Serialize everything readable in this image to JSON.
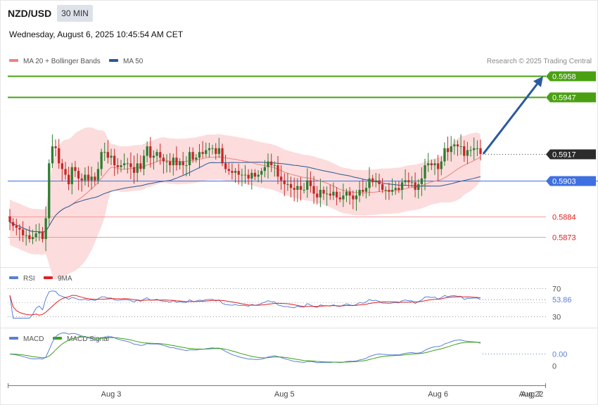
{
  "header": {
    "symbol": "NZD/USD",
    "timeframe": "30 MIN",
    "datetime": "Wednesday, August 6, 2025 10:45:54 AM CET",
    "credit": "Research © 2025 Trading Central"
  },
  "legend": {
    "main": [
      {
        "label": "MA 20 + Bollinger Bands",
        "color": "#f08080"
      },
      {
        "label": "MA 50",
        "color": "#2b5797"
      }
    ],
    "rsi": [
      {
        "label": "RSI",
        "color": "#5b7fd6"
      },
      {
        "label": "9MA",
        "color": "#e02020"
      }
    ],
    "macd": [
      {
        "label": "MACD",
        "color": "#5b7fd6"
      },
      {
        "label": "MACD Signal",
        "color": "#3aa01a"
      }
    ]
  },
  "colors": {
    "resistance": "#4aa012",
    "support": "#f29a9a",
    "support_text": "#e02020",
    "pivot": "#3f6fe0",
    "current": "#2b2b2b",
    "arrow": "#2c5aa0",
    "bollinger_fill": "#fcdcdc",
    "candle_up": "#2e7d32",
    "candle_down": "#c62828"
  },
  "chart_data": [
    {
      "type": "candlestick",
      "ylim": [
        0.5859,
        0.5963
      ],
      "levels": [
        {
          "value": 0.5958,
          "label": "0.5958",
          "kind": "resistance"
        },
        {
          "value": 0.5947,
          "label": "0.5947",
          "kind": "resistance"
        },
        {
          "value": 0.5917,
          "label": "0.5917",
          "kind": "current"
        },
        {
          "value": 0.5903,
          "label": "0.5903",
          "kind": "pivot"
        },
        {
          "value": 0.5884,
          "label": "0.5884",
          "kind": "support"
        },
        {
          "value": 0.5873,
          "label": "0.5873",
          "kind": "support"
        }
      ],
      "series_close": [
        0.5881,
        0.5879,
        0.5878,
        0.5877,
        0.5874,
        0.5874,
        0.5872,
        0.5873,
        0.5875,
        0.5876,
        0.5872,
        0.5883,
        0.5912,
        0.5921,
        0.592,
        0.5912,
        0.5909,
        0.5906,
        0.5901,
        0.591,
        0.5908,
        0.5904,
        0.5903,
        0.5906,
        0.5903,
        0.5905,
        0.5903,
        0.5909,
        0.5918,
        0.5918,
        0.5915,
        0.5916,
        0.5911,
        0.591,
        0.5911,
        0.5912,
        0.5912,
        0.591,
        0.5907,
        0.5912,
        0.5909,
        0.5916,
        0.5921,
        0.5915,
        0.5916,
        0.5918,
        0.5915,
        0.5913,
        0.5913,
        0.5911,
        0.5915,
        0.5911,
        0.5913,
        0.5911,
        0.5911,
        0.5918,
        0.5914,
        0.5915,
        0.5918,
        0.5917,
        0.5919,
        0.592,
        0.592,
        0.5917,
        0.592,
        0.5912,
        0.5909,
        0.5908,
        0.5907,
        0.5908,
        0.5906,
        0.5906,
        0.5906,
        0.5904,
        0.5907,
        0.5905,
        0.5906,
        0.5908,
        0.591,
        0.5913,
        0.5911,
        0.5911,
        0.5905,
        0.5903,
        0.5901,
        0.5901,
        0.5899,
        0.5898,
        0.59,
        0.5898,
        0.5898,
        0.5903,
        0.59,
        0.5896,
        0.5894,
        0.5898,
        0.5896,
        0.5896,
        0.5895,
        0.5897,
        0.5894,
        0.5893,
        0.5895,
        0.5897,
        0.5895,
        0.5893,
        0.5895,
        0.5898,
        0.5897,
        0.5899,
        0.5904,
        0.5902,
        0.5903,
        0.5901,
        0.5898,
        0.5898,
        0.5897,
        0.5898,
        0.5899,
        0.5898,
        0.5902,
        0.5903,
        0.5902,
        0.5902,
        0.5898,
        0.5901,
        0.5904,
        0.5911,
        0.5912,
        0.5911,
        0.5912,
        0.5909,
        0.5913,
        0.592,
        0.5918,
        0.5921,
        0.5922,
        0.5921,
        0.5921,
        0.5916,
        0.5919,
        0.5919,
        0.592,
        0.592,
        0.5917
      ],
      "dates": [
        {
          "label": "Aug 3",
          "index": 31
        },
        {
          "label": "Aug 5",
          "index": 84
        },
        {
          "label": "Aug 6",
          "index": 131
        },
        {
          "label": "Aug 7",
          "index": 148
        },
        {
          "label": "Aug 22",
          "index": 164
        }
      ]
    },
    {
      "type": "line",
      "name": "RSI",
      "ylim": [
        20,
        80
      ],
      "ref_lines": [
        {
          "value": 70,
          "label": "70"
        },
        {
          "value": 30,
          "label": "30"
        }
      ],
      "current_value": "53.86"
    },
    {
      "type": "line",
      "name": "MACD",
      "ref_lines": [
        {
          "label": "0.00"
        },
        {
          "label": "0"
        }
      ]
    }
  ]
}
